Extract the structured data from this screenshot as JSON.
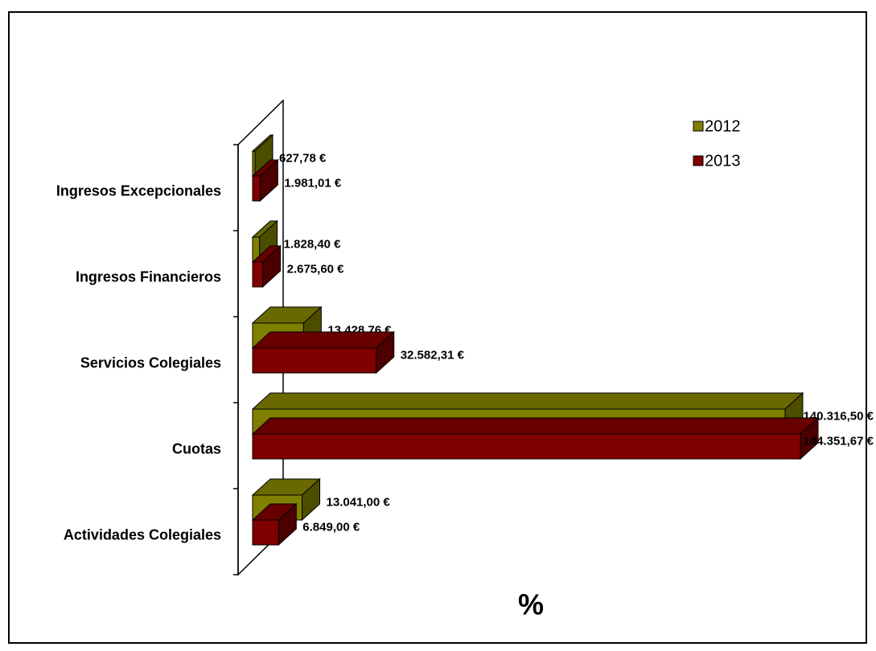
{
  "chart_data": {
    "type": "bar3d_horizontal",
    "categories": [
      "Ingresos Excepcionales",
      "Ingresos Financieros",
      "Servicios Colegiales",
      "Cuotas",
      "Actividades Colegiales"
    ],
    "series": [
      {
        "name": "2012",
        "color": "#808000",
        "values": [
          627.78,
          1828.4,
          13428.76,
          140316.5,
          13041.0
        ],
        "value_labels": [
          "627,78 €",
          "1.828,40 €",
          "13.428,76 €",
          "140.316,50 €",
          "13.041,00 €"
        ]
      },
      {
        "name": "2013",
        "color": "#800000",
        "values": [
          1981.01,
          2675.6,
          32582.31,
          144351.67,
          6849.0
        ],
        "value_labels": [
          "1.981,01 €",
          "2.675,60 €",
          "32.582,31 €",
          "144.351,67 €",
          "6.849,00 €"
        ]
      }
    ],
    "xlabel": "%",
    "legend": "upper right"
  }
}
